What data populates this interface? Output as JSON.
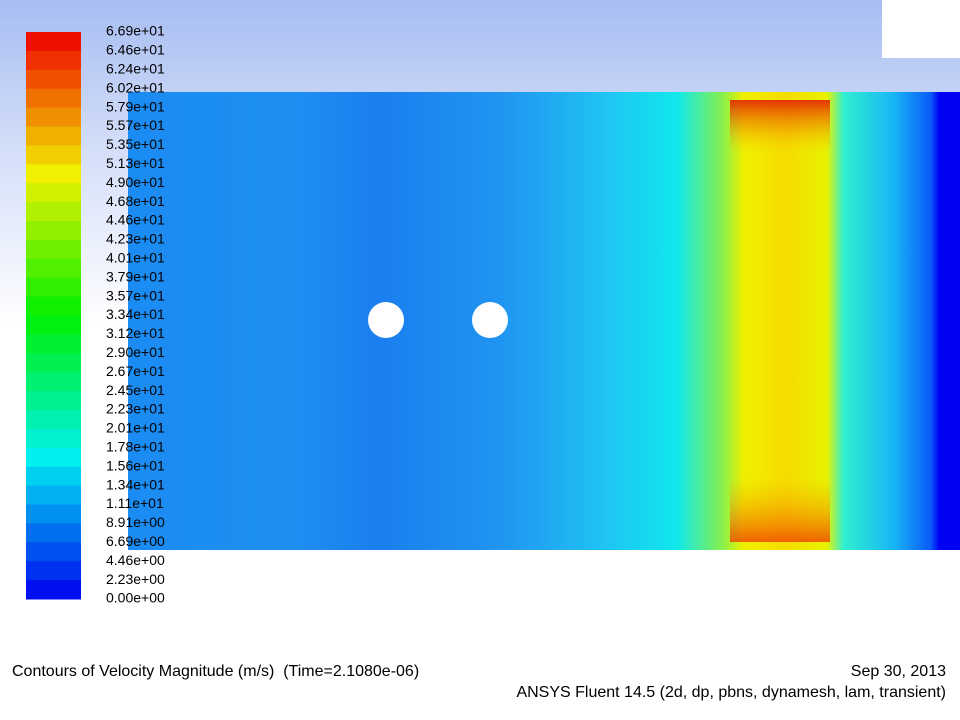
{
  "colorbar": {
    "labels": [
      "6.69e+01",
      "6.46e+01",
      "6.24e+01",
      "6.02e+01",
      "5.79e+01",
      "5.57e+01",
      "5.35e+01",
      "5.13e+01",
      "4.90e+01",
      "4.68e+01",
      "4.46e+01",
      "4.23e+01",
      "4.01e+01",
      "3.79e+01",
      "3.57e+01",
      "3.34e+01",
      "3.12e+01",
      "2.90e+01",
      "2.67e+01",
      "2.45e+01",
      "2.23e+01",
      "2.01e+01",
      "1.78e+01",
      "1.56e+01",
      "1.34e+01",
      "1.11e+01",
      "8.91e+00",
      "6.69e+00",
      "4.46e+00",
      "2.23e+00",
      "0.00e+00"
    ]
  },
  "caption": {
    "title": "Contours of Velocity Magnitude (m/s)  (Time=2.1080e-06)",
    "date": "Sep 30, 2013",
    "software": "ANSYS Fluent 14.5 (2d, dp, pbns, dynamesh, lam, transient)"
  }
}
